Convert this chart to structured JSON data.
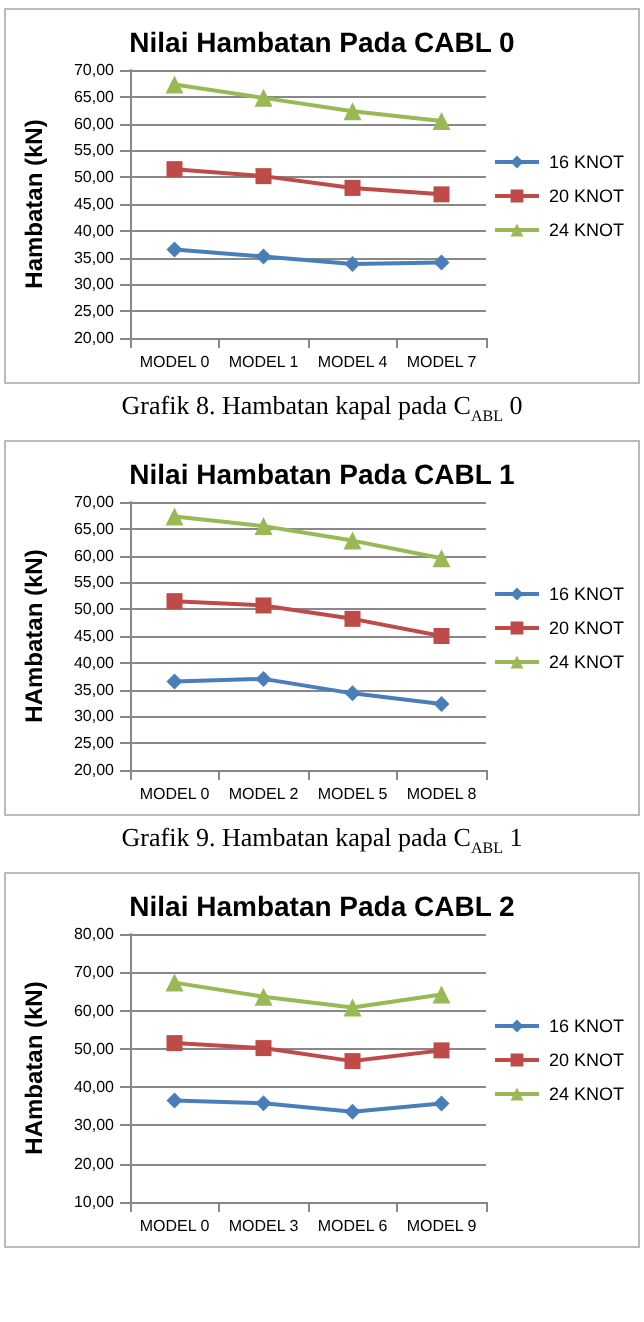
{
  "chart_data": [
    {
      "type": "line",
      "title": "Nilai Hambatan Pada CABL 0",
      "ylabel": "Hambatan (kN)",
      "categories": [
        "MODEL 0",
        "MODEL 1",
        "MODEL 4",
        "MODEL 7"
      ],
      "series": [
        {
          "name": "16 KNOT",
          "color": "#4a7ebb",
          "marker": "diamond",
          "values": [
            36.5,
            35.2,
            33.8,
            34.1
          ]
        },
        {
          "name": "20 KNOT",
          "color": "#be4b48",
          "marker": "square",
          "values": [
            51.5,
            50.2,
            48.0,
            46.8
          ]
        },
        {
          "name": "24 KNOT",
          "color": "#98b954",
          "marker": "triangle",
          "values": [
            67.3,
            64.8,
            62.3,
            60.5
          ]
        }
      ],
      "ylim": [
        20,
        70
      ],
      "yticks": [
        {
          "value": 20,
          "label": "20,00"
        },
        {
          "value": 25,
          "label": "25,00"
        },
        {
          "value": 30,
          "label": "30,00"
        },
        {
          "value": 35,
          "label": "35,00"
        },
        {
          "value": 40,
          "label": "40,00"
        },
        {
          "value": 45,
          "label": "45,00"
        },
        {
          "value": 50,
          "label": "50,00"
        },
        {
          "value": 55,
          "label": "55,00"
        },
        {
          "value": 60,
          "label": "60,00"
        },
        {
          "value": 65,
          "label": "65,00"
        },
        {
          "value": 70,
          "label": "70,00"
        }
      ],
      "grid": "y",
      "legend": "right",
      "annotations": [
        "Grafik 8. Hambatan kapal pada  C$_{ABL}$ 0"
      ]
    },
    {
      "type": "line",
      "title": "Nilai Hambatan Pada CABL 1",
      "ylabel": "HAmbatan (kN)",
      "categories": [
        "MODEL 0",
        "MODEL 2",
        "MODEL 5",
        "MODEL 8"
      ],
      "series": [
        {
          "name": "16 KNOT",
          "color": "#4a7ebb",
          "marker": "diamond",
          "values": [
            36.5,
            37.0,
            34.3,
            32.3
          ]
        },
        {
          "name": "20 KNOT",
          "color": "#be4b48",
          "marker": "square",
          "values": [
            51.5,
            50.7,
            48.2,
            45.0
          ]
        },
        {
          "name": "24 KNOT",
          "color": "#98b954",
          "marker": "triangle",
          "values": [
            67.3,
            65.5,
            62.8,
            59.5
          ]
        }
      ],
      "ylim": [
        20,
        70
      ],
      "yticks": [
        {
          "value": 20,
          "label": "20,00"
        },
        {
          "value": 25,
          "label": "25,00"
        },
        {
          "value": 30,
          "label": "30,00"
        },
        {
          "value": 35,
          "label": "35,00"
        },
        {
          "value": 40,
          "label": "40,00"
        },
        {
          "value": 45,
          "label": "45,00"
        },
        {
          "value": 50,
          "label": "50,00"
        },
        {
          "value": 55,
          "label": "55,00"
        },
        {
          "value": 60,
          "label": "60,00"
        },
        {
          "value": 65,
          "label": "65,00"
        },
        {
          "value": 70,
          "label": "70,00"
        }
      ],
      "grid": "y",
      "legend": "right",
      "annotations": [
        "Grafik 9. Hambatan kapal pada  C$_{ABL}$ 1"
      ]
    },
    {
      "type": "line",
      "title": "Nilai Hambatan Pada CABL 2",
      "ylabel": "HAmbatan (kN)",
      "categories": [
        "MODEL 0",
        "MODEL 3",
        "MODEL 6",
        "MODEL 9"
      ],
      "series": [
        {
          "name": "16 KNOT",
          "color": "#4a7ebb",
          "marker": "diamond",
          "values": [
            36.5,
            35.8,
            33.6,
            35.7
          ]
        },
        {
          "name": "20 KNOT",
          "color": "#be4b48",
          "marker": "square",
          "values": [
            51.5,
            50.2,
            46.8,
            49.6
          ]
        },
        {
          "name": "24 KNOT",
          "color": "#98b954",
          "marker": "triangle",
          "values": [
            67.3,
            63.6,
            60.8,
            64.2
          ]
        }
      ],
      "ylim": [
        10,
        80
      ],
      "yticks": [
        {
          "value": 10,
          "label": "10,00"
        },
        {
          "value": 20,
          "label": "20,00"
        },
        {
          "value": 30,
          "label": "30,00"
        },
        {
          "value": 40,
          "label": "40,00"
        },
        {
          "value": 50,
          "label": "50,00"
        },
        {
          "value": 60,
          "label": "60,00"
        },
        {
          "value": 70,
          "label": "70,00"
        },
        {
          "value": 80,
          "label": "80,00"
        }
      ],
      "grid": "y",
      "legend": "right"
    }
  ]
}
